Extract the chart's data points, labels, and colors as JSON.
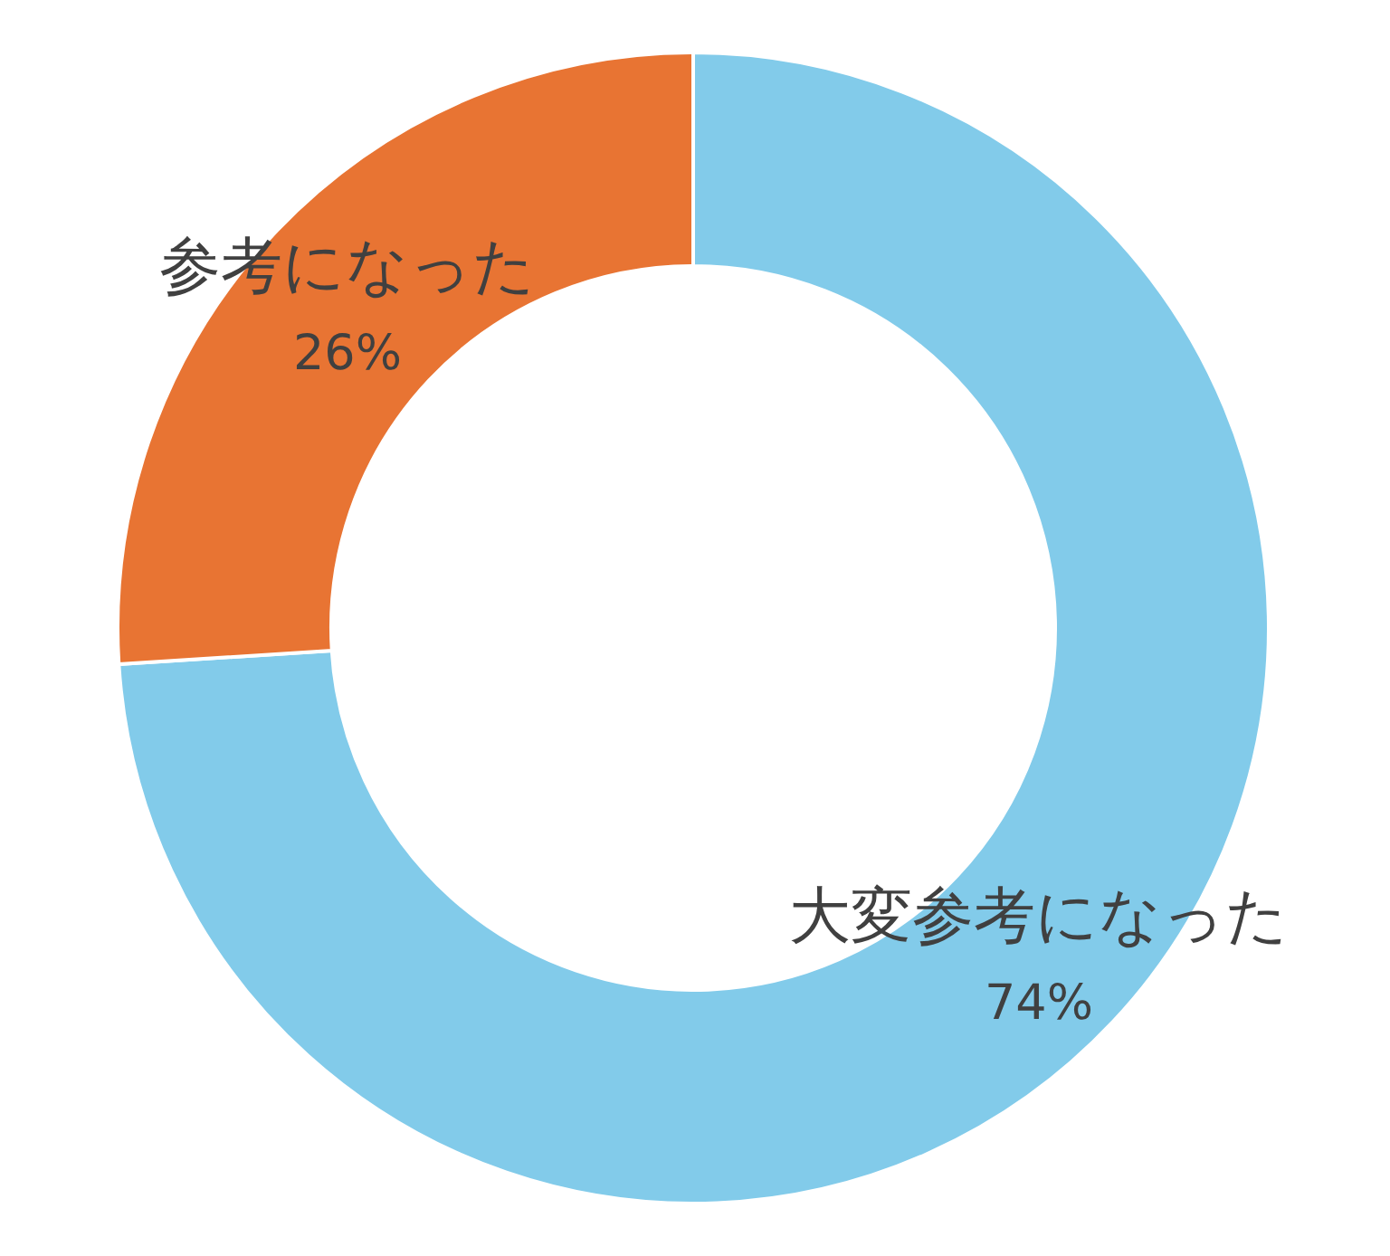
{
  "chart_data": {
    "type": "donut",
    "categories": [
      "大変参考になった",
      "参考になった"
    ],
    "values": [
      74,
      26
    ],
    "colors": [
      "#82cbea",
      "#e87433"
    ],
    "value_labels": [
      "74%",
      "26%"
    ],
    "legend": false
  }
}
